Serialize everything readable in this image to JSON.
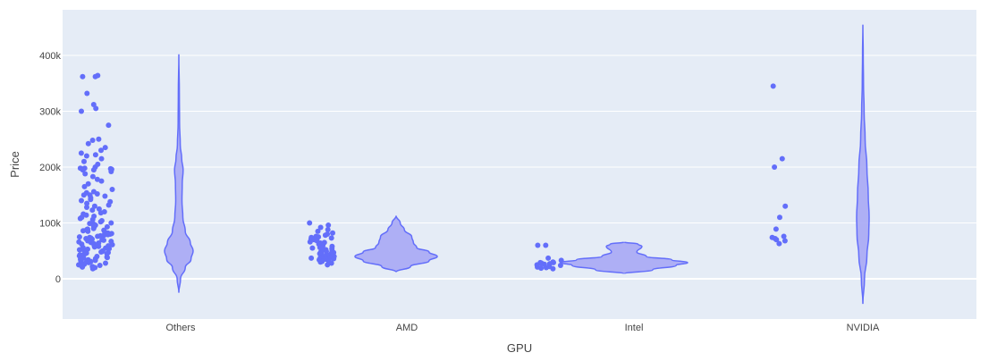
{
  "chart_data": {
    "type": "violin",
    "xlabel": "GPU",
    "ylabel": "Price",
    "categories": [
      "Others",
      "AMD",
      "Intel",
      "NVIDIA"
    ],
    "ylim": [
      -70000,
      460000
    ],
    "yticks": [
      0,
      100000,
      200000,
      300000,
      400000
    ],
    "ytick_labels": [
      "0",
      "100k",
      "200k",
      "300k",
      "400k"
    ],
    "grid": true,
    "colors": {
      "marker": "#636efa",
      "violin_fill": "#a7a9f5",
      "violin_line": "#636efa",
      "plot_bg": "#e5ecf6"
    },
    "series": [
      {
        "category": "Others",
        "points": [
          362000,
          364000,
          362000,
          332000,
          312000,
          305000,
          300000,
          275000,
          250000,
          248000,
          242000,
          235000,
          230000,
          225000,
          222000,
          220000,
          215000,
          210000,
          205000,
          200000,
          198000,
          198000,
          197000,
          196000,
          195000,
          195000,
          192000,
          188000,
          183000,
          178000,
          175000,
          170000,
          165000,
          160000,
          156000,
          154000,
          152000,
          150000,
          150000,
          148000,
          145000,
          142000,
          140000,
          138000,
          135000,
          132000,
          130000,
          128000,
          125000,
          123000,
          120000,
          118000,
          116000,
          114000,
          112000,
          110000,
          108000,
          106000,
          104000,
          102000,
          100000,
          99000,
          98000,
          96000,
          95000,
          93000,
          92000,
          90000,
          89000,
          88000,
          87000,
          86000,
          85000,
          84000,
          82000,
          81000,
          80000,
          79000,
          78000,
          77000,
          76000,
          75000,
          74000,
          73000,
          72000,
          71000,
          70000,
          69000,
          68000,
          67000,
          66000,
          65000,
          64000,
          63000,
          62000,
          61000,
          60000,
          59000,
          58000,
          57000,
          56000,
          55000,
          54000,
          53000,
          52000,
          51000,
          50000,
          49000,
          48000,
          47000,
          46000,
          45000,
          44000,
          43000,
          42000,
          41000,
          40000,
          39000,
          38000,
          37000,
          36000,
          35000,
          34000,
          33000,
          32000,
          31000,
          30000,
          29000,
          28000,
          27000,
          26000,
          25000,
          24000,
          23000,
          22000,
          21000,
          20000,
          18000
        ],
        "violin": {
          "min": -25000,
          "max": 402000,
          "profile": [
            [
              -25000,
              0
            ],
            [
              0,
              0.12
            ],
            [
              20000,
              0.45
            ],
            [
              35000,
              0.85
            ],
            [
              50000,
              1.0
            ],
            [
              65000,
              0.8
            ],
            [
              85000,
              0.45
            ],
            [
              110000,
              0.28
            ],
            [
              140000,
              0.22
            ],
            [
              170000,
              0.24
            ],
            [
              195000,
              0.3
            ],
            [
              215000,
              0.2
            ],
            [
              240000,
              0.1
            ],
            [
              280000,
              0.05
            ],
            [
              330000,
              0.04
            ],
            [
              402000,
              0
            ]
          ]
        }
      },
      {
        "category": "AMD",
        "points": [
          100000,
          96000,
          92000,
          88000,
          85000,
          82000,
          80000,
          78000,
          76000,
          75000,
          74000,
          73000,
          72000,
          71000,
          70000,
          68000,
          66000,
          65000,
          64000,
          62000,
          60000,
          58000,
          57000,
          56000,
          55000,
          54000,
          52000,
          51000,
          50000,
          49000,
          48000,
          47000,
          46000,
          45000,
          44000,
          43000,
          42000,
          41000,
          40000,
          40000,
          39000,
          38000,
          38000,
          37000,
          36000,
          36000,
          35000,
          34000,
          33000,
          32000,
          31000,
          30000,
          28000,
          25000
        ],
        "violin": {
          "min": 12000,
          "max": 113000,
          "profile": [
            [
              12000,
              0
            ],
            [
              22000,
              0.35
            ],
            [
              32000,
              0.8
            ],
            [
              40000,
              1.0
            ],
            [
              48000,
              0.8
            ],
            [
              56000,
              0.5
            ],
            [
              65000,
              0.42
            ],
            [
              75000,
              0.38
            ],
            [
              88000,
              0.2
            ],
            [
              100000,
              0.1
            ],
            [
              113000,
              0
            ]
          ]
        }
      },
      {
        "category": "Intel",
        "points": [
          60000,
          60000,
          37000,
          33000,
          30000,
          29000,
          29000,
          28000,
          28000,
          27000,
          26000,
          25000,
          24000,
          22000,
          21000,
          20000,
          19000,
          18000
        ],
        "violin": {
          "min": 9000,
          "max": 66000,
          "profile": [
            [
              9000,
              0
            ],
            [
              16000,
              0.45
            ],
            [
              24000,
              0.82
            ],
            [
              29000,
              1.0
            ],
            [
              34000,
              0.75
            ],
            [
              40000,
              0.35
            ],
            [
              48000,
              0.2
            ],
            [
              58000,
              0.28
            ],
            [
              62000,
              0.22
            ],
            [
              66000,
              0
            ]
          ]
        }
      },
      {
        "category": "NVIDIA",
        "points": [
          345000,
          215000,
          200000,
          130000,
          110000,
          89000,
          76000,
          74000,
          72000,
          70000,
          68000,
          63000
        ],
        "violin": {
          "min": -45000,
          "max": 455000,
          "profile": [
            [
              -45000,
              0
            ],
            [
              0,
              0.25
            ],
            [
              40000,
              0.65
            ],
            [
              80000,
              0.95
            ],
            [
              110000,
              1.0
            ],
            [
              150000,
              0.85
            ],
            [
              200000,
              0.65
            ],
            [
              250000,
              0.35
            ],
            [
              300000,
              0.2
            ],
            [
              350000,
              0.1
            ],
            [
              400000,
              0.05
            ],
            [
              455000,
              0
            ]
          ]
        }
      }
    ]
  }
}
